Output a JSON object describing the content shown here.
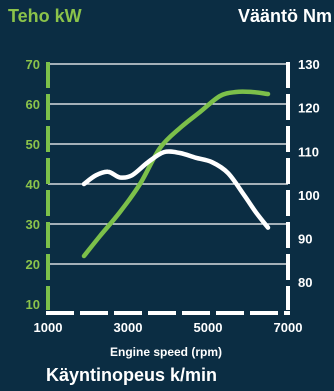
{
  "chart_data": {
    "type": "line",
    "title_left": "Teho kW",
    "title_right": "Vääntö Nm",
    "xlabel": "Käyntinopeus k/min",
    "xlabel_secondary": "Engine speed (rpm)",
    "x_ticks": [
      1000,
      3000,
      5000,
      7000
    ],
    "xlim": [
      1000,
      7000
    ],
    "y_left": {
      "ticks": [
        10,
        20,
        30,
        40,
        50,
        60,
        70
      ],
      "ylim": [
        10,
        70
      ]
    },
    "y_right": {
      "ticks": [
        80,
        90,
        100,
        110,
        120,
        130
      ],
      "ylim": [
        75,
        130
      ]
    },
    "grid": true,
    "series": [
      {
        "axis": "left",
        "color": "#7cc04a",
        "points": [
          [
            1900,
            22
          ],
          [
            2300,
            27
          ],
          [
            2800,
            33
          ],
          [
            3300,
            40
          ],
          [
            3800,
            49
          ],
          [
            4300,
            54
          ],
          [
            4800,
            58
          ],
          [
            5300,
            62
          ],
          [
            5700,
            63
          ],
          [
            6100,
            63
          ],
          [
            6500,
            62.5
          ]
        ]
      },
      {
        "axis": "right",
        "color": "#ffffff",
        "points": [
          [
            1900,
            102.5
          ],
          [
            2200,
            104.5
          ],
          [
            2500,
            105.3
          ],
          [
            2800,
            104
          ],
          [
            3100,
            104.5
          ],
          [
            3500,
            107.5
          ],
          [
            3900,
            109.8
          ],
          [
            4300,
            109.6
          ],
          [
            4700,
            108.5
          ],
          [
            5100,
            107.5
          ],
          [
            5500,
            105
          ],
          [
            5900,
            100
          ],
          [
            6200,
            96
          ],
          [
            6500,
            92.5
          ]
        ]
      }
    ]
  }
}
